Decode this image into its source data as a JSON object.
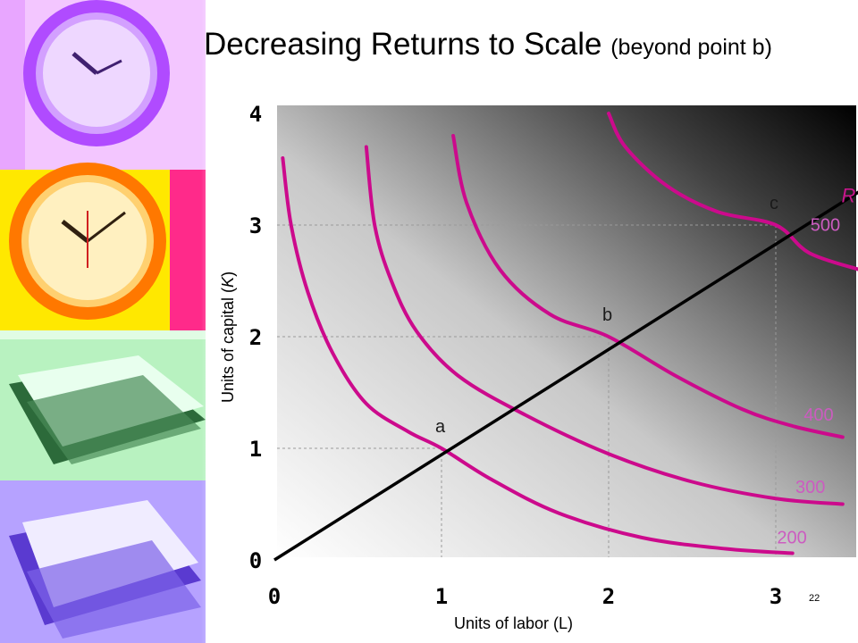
{
  "slide": {
    "title": "Decreasing Returns to Scale",
    "subtitle": "(beyond point b)",
    "slide_number": "22"
  },
  "colors": {
    "isoquant": "#cc0a8c",
    "isoquant_label": "#cc5cc0",
    "ray": "#000000",
    "ray_label": "#c8168c"
  },
  "sidebar_images": [
    "purple-clock-icon",
    "orange-clock-icon",
    "green-papers-icon",
    "purple-papers-icon"
  ],
  "chart_data": {
    "type": "line",
    "xlabel": "Units of labor (L)",
    "ylabel": "Units of capital (",
    "ylabel_var": "K",
    "ylabel_end": ")",
    "x_ticks": [
      "0",
      "1",
      "2",
      "3"
    ],
    "y_ticks": [
      "0",
      "1",
      "2",
      "3",
      "4"
    ],
    "xlim": [
      0,
      3.5
    ],
    "ylim": [
      0,
      4
    ],
    "ray": {
      "label": "R",
      "points": [
        [
          0,
          0
        ],
        [
          3.5,
          3.3
        ]
      ]
    },
    "isoquants": [
      {
        "label": "200",
        "points": [
          [
            0.05,
            3.6
          ],
          [
            0.1,
            3.0
          ],
          [
            0.2,
            2.4
          ],
          [
            0.35,
            1.85
          ],
          [
            0.55,
            1.4
          ],
          [
            0.8,
            1.15
          ],
          [
            1.0,
            1.0
          ],
          [
            1.3,
            0.72
          ],
          [
            1.7,
            0.42
          ],
          [
            2.2,
            0.2
          ],
          [
            2.7,
            0.1
          ],
          [
            3.1,
            0.06
          ]
        ]
      },
      {
        "label": "300",
        "points": [
          [
            0.55,
            3.7
          ],
          [
            0.6,
            3.0
          ],
          [
            0.7,
            2.5
          ],
          [
            0.85,
            2.05
          ],
          [
            1.1,
            1.65
          ],
          [
            1.5,
            1.3
          ],
          [
            2.0,
            0.95
          ],
          [
            2.5,
            0.7
          ],
          [
            3.0,
            0.55
          ],
          [
            3.4,
            0.5
          ]
        ]
      },
      {
        "label": "400",
        "points": [
          [
            1.07,
            3.8
          ],
          [
            1.15,
            3.2
          ],
          [
            1.35,
            2.6
          ],
          [
            1.65,
            2.2
          ],
          [
            2.0,
            2.0
          ],
          [
            2.4,
            1.65
          ],
          [
            2.8,
            1.35
          ],
          [
            3.1,
            1.2
          ],
          [
            3.4,
            1.1
          ]
        ]
      },
      {
        "label": "500",
        "points": [
          [
            2.0,
            4.0
          ],
          [
            2.1,
            3.7
          ],
          [
            2.35,
            3.35
          ],
          [
            2.65,
            3.12
          ],
          [
            3.0,
            3.0
          ],
          [
            3.2,
            2.75
          ],
          [
            3.5,
            2.6
          ]
        ]
      }
    ],
    "reference_lines": {
      "vertical_x": [
        1,
        2,
        3
      ],
      "horizontal_y": [
        1,
        2,
        3
      ]
    },
    "points": [
      {
        "label": "a",
        "x": 1,
        "y": 1
      },
      {
        "label": "b",
        "x": 2,
        "y": 2
      },
      {
        "label": "c",
        "x": 3,
        "y": 3
      }
    ],
    "isoquant_labels": [
      {
        "text": "500",
        "x": 3.4,
        "y": 2.95
      },
      {
        "text": "400",
        "x": 3.36,
        "y": 1.25
      },
      {
        "text": "300",
        "x": 3.31,
        "y": 0.6
      },
      {
        "text": "200",
        "x": 3.2,
        "y": 0.15
      }
    ]
  }
}
